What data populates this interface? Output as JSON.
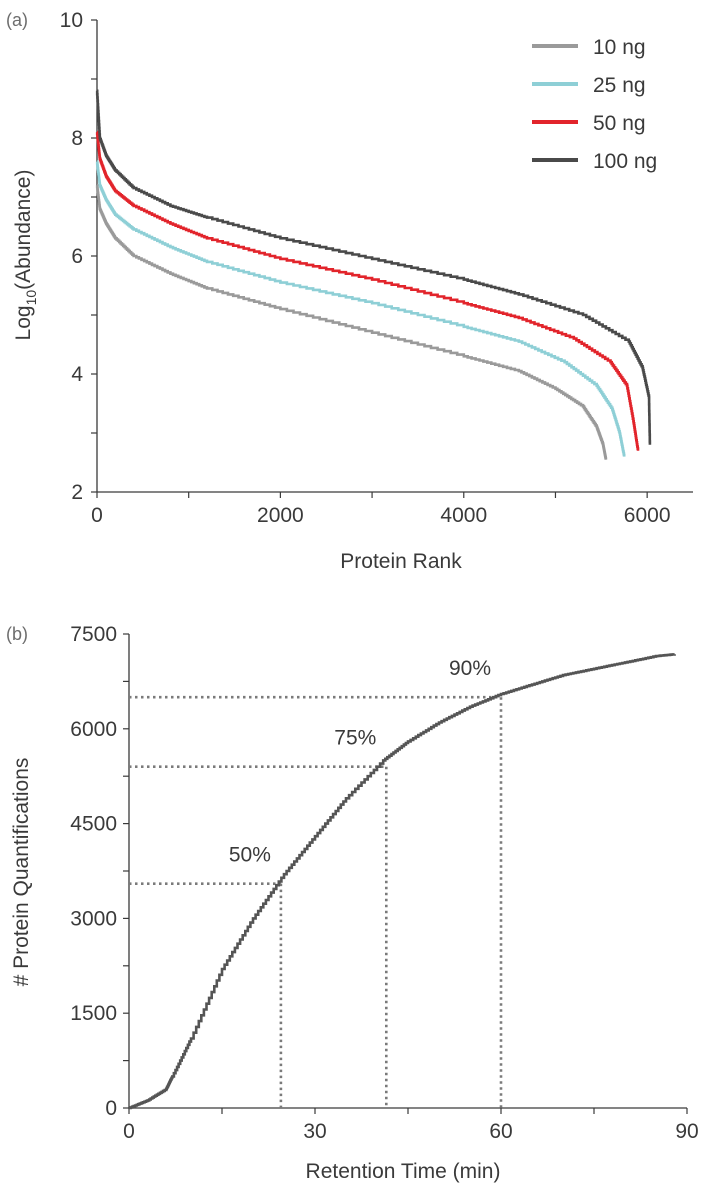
{
  "chart_data": [
    {
      "type": "line",
      "panel_label": "(a)",
      "xlabel": "Protein Rank",
      "ylabel_main": "Log",
      "ylabel_sub": "10",
      "ylabel_rest": "(Abundance)",
      "xlim": [
        0,
        6500
      ],
      "ylim": [
        2,
        10
      ],
      "x_ticks": [
        0,
        2000,
        4000,
        6000
      ],
      "y_ticks": [
        2,
        4,
        6,
        8,
        10
      ],
      "legend_position": "top-right",
      "colors": {
        "10 ng": "#9a9a9a",
        "25 ng": "#8ecfd6",
        "50 ng": "#e2242b",
        "100 ng": "#4a4a4a"
      },
      "series": [
        {
          "name": "10 ng",
          "color": "#9a9a9a",
          "x": [
            0,
            30,
            100,
            200,
            400,
            800,
            1200,
            2000,
            3000,
            4000,
            4600,
            5000,
            5300,
            5450,
            5520,
            5550
          ],
          "y": [
            7.2,
            6.8,
            6.55,
            6.3,
            6.0,
            5.7,
            5.45,
            5.1,
            4.7,
            4.3,
            4.05,
            3.75,
            3.45,
            3.1,
            2.8,
            2.55
          ]
        },
        {
          "name": "25 ng",
          "color": "#8ecfd6",
          "x": [
            0,
            30,
            100,
            200,
            400,
            800,
            1200,
            2000,
            3000,
            4000,
            4600,
            5100,
            5450,
            5620,
            5700,
            5750
          ],
          "y": [
            7.6,
            7.2,
            6.95,
            6.7,
            6.45,
            6.15,
            5.9,
            5.55,
            5.2,
            4.8,
            4.55,
            4.2,
            3.8,
            3.4,
            3.0,
            2.6
          ]
        },
        {
          "name": "50 ng",
          "color": "#e2242b",
          "x": [
            0,
            30,
            100,
            200,
            400,
            800,
            1200,
            2000,
            3000,
            4000,
            4600,
            5200,
            5600,
            5780,
            5850,
            5900
          ],
          "y": [
            8.1,
            7.65,
            7.35,
            7.1,
            6.85,
            6.55,
            6.3,
            5.95,
            5.6,
            5.2,
            4.95,
            4.6,
            4.2,
            3.8,
            3.2,
            2.7
          ]
        },
        {
          "name": "100 ng",
          "color": "#4a4a4a",
          "x": [
            0,
            30,
            100,
            200,
            400,
            800,
            1200,
            2000,
            3000,
            4000,
            4600,
            5300,
            5800,
            5950,
            6020,
            6030
          ],
          "y": [
            8.8,
            8.0,
            7.7,
            7.45,
            7.15,
            6.85,
            6.65,
            6.3,
            5.95,
            5.6,
            5.35,
            5.0,
            4.55,
            4.1,
            3.6,
            2.8
          ]
        }
      ]
    },
    {
      "type": "line",
      "panel_label": "(b)",
      "xlabel": "Retention Time (min)",
      "ylabel": "# Protein Quantifications",
      "xlim": [
        0,
        90
      ],
      "ylim": [
        0,
        7500
      ],
      "x_ticks": [
        0,
        30,
        60,
        90
      ],
      "y_ticks": [
        0,
        1500,
        3000,
        4500,
        6000,
        7500
      ],
      "series": [
        {
          "name": "",
          "color": "#555555",
          "x": [
            0,
            3,
            6,
            7,
            10,
            15,
            20,
            25,
            30,
            35,
            41,
            45,
            50,
            55,
            60,
            65,
            70,
            75,
            80,
            85,
            88
          ],
          "y": [
            0,
            120,
            300,
            500,
            1100,
            2200,
            3000,
            3700,
            4300,
            4900,
            5500,
            5800,
            6100,
            6350,
            6550,
            6700,
            6850,
            6950,
            7050,
            7150,
            7180
          ]
        }
      ],
      "annotations": [
        {
          "label": "50%",
          "x": 24.5,
          "y": 3550
        },
        {
          "label": "75%",
          "x": 41.5,
          "y": 5400
        },
        {
          "label": "90%",
          "x": 60,
          "y": 6500
        }
      ]
    }
  ]
}
